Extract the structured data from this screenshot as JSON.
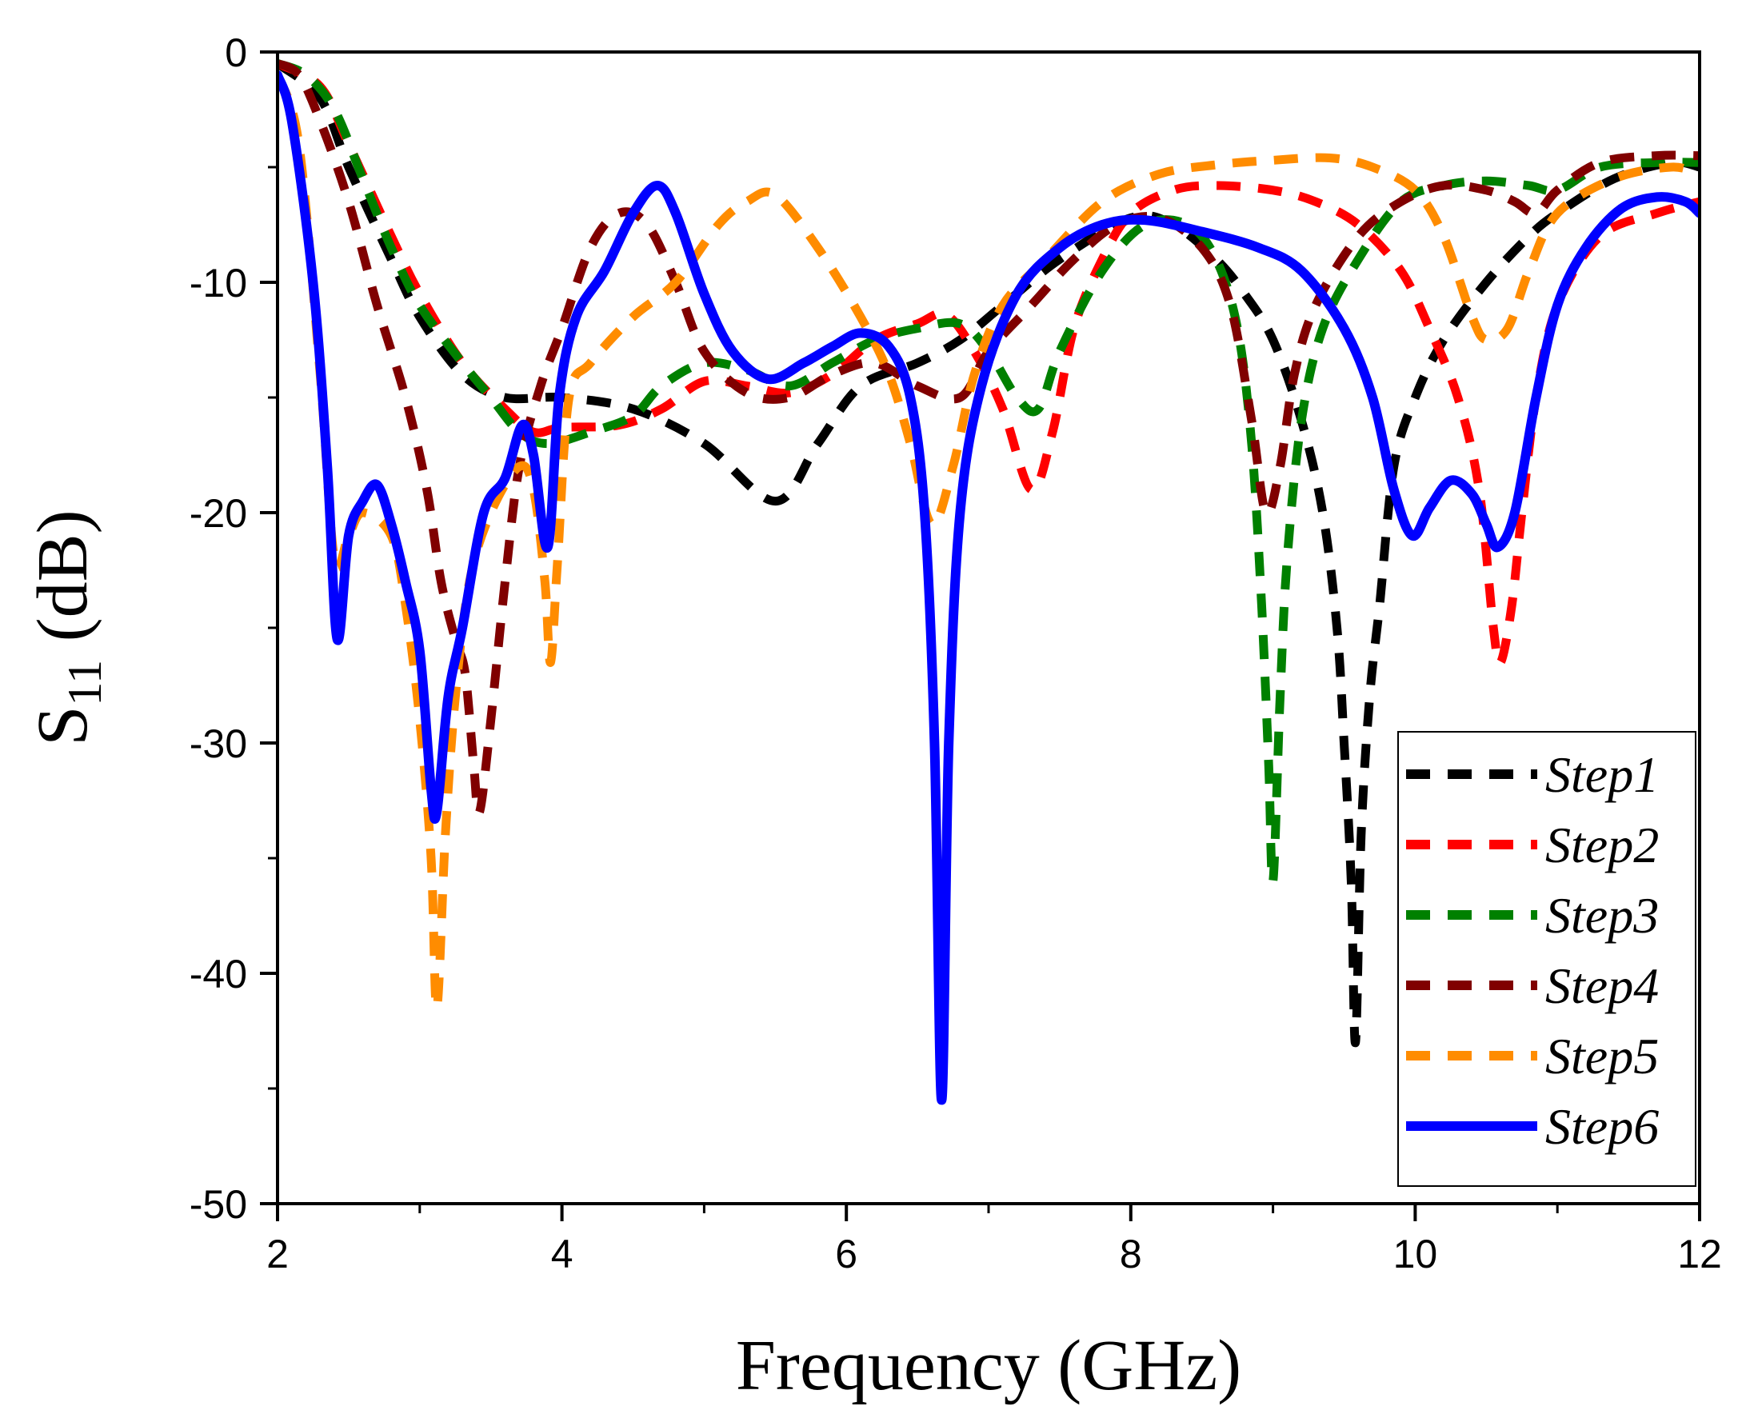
{
  "chart_data": {
    "type": "line",
    "title": "",
    "xlabel": "Frequency (GHz)",
    "ylabel": {
      "main": "S",
      "sub": "11",
      "unit": " (dB)"
    },
    "xlim": [
      2,
      12
    ],
    "ylim": [
      -50,
      0
    ],
    "xticks": [
      2,
      4,
      6,
      8,
      10,
      12
    ],
    "yticks": [
      0,
      -10,
      -20,
      -30,
      -40,
      -50
    ],
    "xtick_labels": [
      "2",
      "4",
      "6",
      "8",
      "10",
      "12"
    ],
    "ytick_labels": [
      "0",
      "-10",
      "-20",
      "-30",
      "-40",
      "-50"
    ],
    "legend_position": "bottom-right",
    "series": [
      {
        "name": "Step1",
        "color": "#000000",
        "style": "dashed",
        "points": [
          [
            2,
            -0.5
          ],
          [
            2.3,
            -2
          ],
          [
            2.5,
            -5
          ],
          [
            2.8,
            -9
          ],
          [
            3.0,
            -11.5
          ],
          [
            3.3,
            -14
          ],
          [
            3.6,
            -15
          ],
          [
            4.0,
            -15
          ],
          [
            4.5,
            -15.5
          ],
          [
            5.0,
            -17
          ],
          [
            5.5,
            -19.5
          ],
          [
            5.8,
            -17
          ],
          [
            6.1,
            -14.5
          ],
          [
            6.5,
            -13.5
          ],
          [
            6.8,
            -12.5
          ],
          [
            7.1,
            -11
          ],
          [
            7.5,
            -9
          ],
          [
            8.0,
            -7.2
          ],
          [
            8.3,
            -7.5
          ],
          [
            8.6,
            -9
          ],
          [
            8.8,
            -10.5
          ],
          [
            9.0,
            -12.5
          ],
          [
            9.2,
            -16
          ],
          [
            9.35,
            -20
          ],
          [
            9.45,
            -25
          ],
          [
            9.5,
            -30
          ],
          [
            9.55,
            -36
          ],
          [
            9.58,
            -43
          ],
          [
            9.62,
            -34
          ],
          [
            9.68,
            -28
          ],
          [
            9.75,
            -24
          ],
          [
            9.85,
            -18
          ],
          [
            10.0,
            -15
          ],
          [
            10.2,
            -12.5
          ],
          [
            10.5,
            -10
          ],
          [
            10.8,
            -8
          ],
          [
            11.0,
            -7
          ],
          [
            11.4,
            -5.5
          ],
          [
            11.8,
            -4.8
          ],
          [
            12,
            -5
          ]
        ]
      },
      {
        "name": "Step2",
        "color": "#ff0000",
        "style": "dashed",
        "points": [
          [
            2,
            -0.5
          ],
          [
            2.3,
            -1.5
          ],
          [
            2.5,
            -4
          ],
          [
            2.8,
            -8
          ],
          [
            3.0,
            -10.5
          ],
          [
            3.3,
            -13.5
          ],
          [
            3.6,
            -15.5
          ],
          [
            3.8,
            -16.5
          ],
          [
            4.0,
            -16.3
          ],
          [
            4.4,
            -16.2
          ],
          [
            4.7,
            -15.5
          ],
          [
            5.0,
            -14.3
          ],
          [
            5.3,
            -14.5
          ],
          [
            5.6,
            -14.8
          ],
          [
            5.9,
            -14
          ],
          [
            6.2,
            -12.5
          ],
          [
            6.5,
            -11.8
          ],
          [
            6.7,
            -11.4
          ],
          [
            6.9,
            -13
          ],
          [
            7.1,
            -15.5
          ],
          [
            7.3,
            -19
          ],
          [
            7.45,
            -16.5
          ],
          [
            7.6,
            -12
          ],
          [
            7.8,
            -9
          ],
          [
            8.0,
            -7
          ],
          [
            8.3,
            -6
          ],
          [
            8.6,
            -5.8
          ],
          [
            9.0,
            -6
          ],
          [
            9.3,
            -6.5
          ],
          [
            9.6,
            -7.5
          ],
          [
            9.9,
            -9.5
          ],
          [
            10.1,
            -12
          ],
          [
            10.3,
            -15
          ],
          [
            10.45,
            -19
          ],
          [
            10.55,
            -25
          ],
          [
            10.6,
            -26.5
          ],
          [
            10.68,
            -24
          ],
          [
            10.75,
            -20
          ],
          [
            10.85,
            -15
          ],
          [
            11.0,
            -11
          ],
          [
            11.3,
            -8
          ],
          [
            11.7,
            -7
          ],
          [
            12,
            -6.5
          ]
        ]
      },
      {
        "name": "Step3",
        "color": "#008000",
        "style": "dashed",
        "points": [
          [
            2,
            -0.5
          ],
          [
            2.2,
            -1
          ],
          [
            2.4,
            -2.5
          ],
          [
            2.6,
            -5.5
          ],
          [
            2.8,
            -8.5
          ],
          [
            3.0,
            -11
          ],
          [
            3.3,
            -13.5
          ],
          [
            3.5,
            -15
          ],
          [
            3.7,
            -16.5
          ],
          [
            3.9,
            -17
          ],
          [
            4.2,
            -16.5
          ],
          [
            4.5,
            -15.8
          ],
          [
            4.7,
            -14.5
          ],
          [
            5.0,
            -13.5
          ],
          [
            5.3,
            -13.8
          ],
          [
            5.6,
            -14.5
          ],
          [
            5.9,
            -13.5
          ],
          [
            6.2,
            -12.5
          ],
          [
            6.5,
            -12
          ],
          [
            6.8,
            -11.8
          ],
          [
            7.0,
            -13
          ],
          [
            7.2,
            -15
          ],
          [
            7.35,
            -15.5
          ],
          [
            7.5,
            -13
          ],
          [
            7.8,
            -9.5
          ],
          [
            8.1,
            -7.5
          ],
          [
            8.4,
            -7.5
          ],
          [
            8.6,
            -9
          ],
          [
            8.75,
            -12
          ],
          [
            8.85,
            -17
          ],
          [
            8.92,
            -24
          ],
          [
            8.97,
            -31
          ],
          [
            9.0,
            -36
          ],
          [
            9.05,
            -28
          ],
          [
            9.1,
            -22
          ],
          [
            9.2,
            -16
          ],
          [
            9.35,
            -12
          ],
          [
            9.6,
            -9
          ],
          [
            9.9,
            -6.5
          ],
          [
            10.2,
            -5.8
          ],
          [
            10.5,
            -5.6
          ],
          [
            10.8,
            -5.8
          ],
          [
            11.0,
            -6
          ],
          [
            11.3,
            -5
          ],
          [
            11.7,
            -4.8
          ],
          [
            12,
            -4.8
          ]
        ]
      },
      {
        "name": "Step4",
        "color": "#800000",
        "style": "dashed",
        "points": [
          [
            2,
            -0.5
          ],
          [
            2.15,
            -1
          ],
          [
            2.3,
            -3
          ],
          [
            2.5,
            -6.5
          ],
          [
            2.7,
            -11
          ],
          [
            2.9,
            -15
          ],
          [
            3.05,
            -19
          ],
          [
            3.15,
            -23
          ],
          [
            3.25,
            -25.5
          ],
          [
            3.32,
            -27
          ],
          [
            3.38,
            -31
          ],
          [
            3.42,
            -33
          ],
          [
            3.5,
            -29
          ],
          [
            3.6,
            -23
          ],
          [
            3.7,
            -18
          ],
          [
            3.85,
            -14.5
          ],
          [
            4.0,
            -12
          ],
          [
            4.2,
            -8.5
          ],
          [
            4.4,
            -7
          ],
          [
            4.6,
            -7.5
          ],
          [
            4.8,
            -10
          ],
          [
            5.0,
            -13
          ],
          [
            5.3,
            -14.8
          ],
          [
            5.6,
            -15
          ],
          [
            5.9,
            -14
          ],
          [
            6.2,
            -13.5
          ],
          [
            6.5,
            -14.5
          ],
          [
            6.8,
            -15
          ],
          [
            7.0,
            -13
          ],
          [
            7.3,
            -11
          ],
          [
            7.6,
            -9
          ],
          [
            7.9,
            -7.5
          ],
          [
            8.2,
            -7.2
          ],
          [
            8.5,
            -8.5
          ],
          [
            8.7,
            -11
          ],
          [
            8.85,
            -16
          ],
          [
            8.95,
            -20
          ],
          [
            9.05,
            -18
          ],
          [
            9.15,
            -14
          ],
          [
            9.3,
            -11
          ],
          [
            9.6,
            -8
          ],
          [
            9.9,
            -6.5
          ],
          [
            10.2,
            -5.8
          ],
          [
            10.5,
            -6
          ],
          [
            10.7,
            -6.5
          ],
          [
            10.85,
            -7
          ],
          [
            11.0,
            -6
          ],
          [
            11.3,
            -4.8
          ],
          [
            11.7,
            -4.5
          ],
          [
            12,
            -4.5
          ]
        ]
      },
      {
        "name": "Step5",
        "color": "#ff8c00",
        "style": "dashed",
        "points": [
          [
            2,
            -1
          ],
          [
            2.15,
            -4
          ],
          [
            2.3,
            -14
          ],
          [
            2.4,
            -22
          ],
          [
            2.5,
            -21
          ],
          [
            2.6,
            -20
          ],
          [
            2.8,
            -21
          ],
          [
            2.9,
            -24
          ],
          [
            3.0,
            -29
          ],
          [
            3.08,
            -35
          ],
          [
            3.12,
            -41.5
          ],
          [
            3.18,
            -34
          ],
          [
            3.25,
            -28
          ],
          [
            3.35,
            -23
          ],
          [
            3.5,
            -20
          ],
          [
            3.7,
            -18
          ],
          [
            3.8,
            -19
          ],
          [
            3.88,
            -23
          ],
          [
            3.92,
            -26.5
          ],
          [
            3.97,
            -22
          ],
          [
            4.05,
            -15
          ],
          [
            4.2,
            -13.5
          ],
          [
            4.5,
            -11.5
          ],
          [
            4.8,
            -10
          ],
          [
            5.1,
            -7.5
          ],
          [
            5.3,
            -6.5
          ],
          [
            5.5,
            -6.2
          ],
          [
            5.8,
            -8.5
          ],
          [
            6.1,
            -11.5
          ],
          [
            6.3,
            -14
          ],
          [
            6.45,
            -17
          ],
          [
            6.6,
            -20.5
          ],
          [
            6.75,
            -18
          ],
          [
            6.9,
            -14
          ],
          [
            7.1,
            -11
          ],
          [
            7.4,
            -9
          ],
          [
            7.8,
            -6.5
          ],
          [
            8.2,
            -5.3
          ],
          [
            8.6,
            -4.9
          ],
          [
            9.0,
            -4.7
          ],
          [
            9.4,
            -4.6
          ],
          [
            9.7,
            -5
          ],
          [
            10.0,
            -6
          ],
          [
            10.2,
            -8
          ],
          [
            10.4,
            -11.5
          ],
          [
            10.5,
            -12.5
          ],
          [
            10.65,
            -12
          ],
          [
            10.8,
            -9.5
          ],
          [
            11.0,
            -7
          ],
          [
            11.4,
            -5.5
          ],
          [
            11.8,
            -5
          ],
          [
            12,
            -5.3
          ]
        ]
      },
      {
        "name": "Step6",
        "color": "#0000ff",
        "style": "solid",
        "points": [
          [
            2,
            -1
          ],
          [
            2.1,
            -3
          ],
          [
            2.25,
            -10
          ],
          [
            2.35,
            -18
          ],
          [
            2.42,
            -25.5
          ],
          [
            2.5,
            -21
          ],
          [
            2.6,
            -19.5
          ],
          [
            2.7,
            -18.8
          ],
          [
            2.8,
            -20.5
          ],
          [
            2.9,
            -23
          ],
          [
            3.0,
            -26
          ],
          [
            3.08,
            -32
          ],
          [
            3.12,
            -33
          ],
          [
            3.2,
            -28
          ],
          [
            3.3,
            -25
          ],
          [
            3.45,
            -20
          ],
          [
            3.6,
            -18.5
          ],
          [
            3.72,
            -16.2
          ],
          [
            3.8,
            -17.5
          ],
          [
            3.9,
            -21.5
          ],
          [
            3.98,
            -15
          ],
          [
            4.1,
            -11.5
          ],
          [
            4.3,
            -9.5
          ],
          [
            4.5,
            -7
          ],
          [
            4.67,
            -5.8
          ],
          [
            4.8,
            -7
          ],
          [
            5.0,
            -10.5
          ],
          [
            5.2,
            -13
          ],
          [
            5.45,
            -14.2
          ],
          [
            5.7,
            -13.5
          ],
          [
            5.9,
            -12.8
          ],
          [
            6.1,
            -12.2
          ],
          [
            6.3,
            -12.8
          ],
          [
            6.45,
            -15
          ],
          [
            6.55,
            -20
          ],
          [
            6.62,
            -30
          ],
          [
            6.67,
            -45.5
          ],
          [
            6.72,
            -30
          ],
          [
            6.8,
            -20
          ],
          [
            6.95,
            -14.5
          ],
          [
            7.2,
            -10.5
          ],
          [
            7.5,
            -8.5
          ],
          [
            7.8,
            -7.5
          ],
          [
            8.1,
            -7.3
          ],
          [
            8.5,
            -7.8
          ],
          [
            8.9,
            -8.5
          ],
          [
            9.2,
            -9.5
          ],
          [
            9.5,
            -12
          ],
          [
            9.7,
            -15
          ],
          [
            9.85,
            -19
          ],
          [
            9.98,
            -21
          ],
          [
            10.1,
            -19.8
          ],
          [
            10.25,
            -18.6
          ],
          [
            10.4,
            -19.2
          ],
          [
            10.5,
            -20.5
          ],
          [
            10.58,
            -21.5
          ],
          [
            10.7,
            -20
          ],
          [
            10.85,
            -15
          ],
          [
            11.0,
            -11
          ],
          [
            11.2,
            -8.5
          ],
          [
            11.45,
            -6.8
          ],
          [
            11.7,
            -6.3
          ],
          [
            11.9,
            -6.5
          ],
          [
            12,
            -7
          ]
        ]
      }
    ]
  }
}
